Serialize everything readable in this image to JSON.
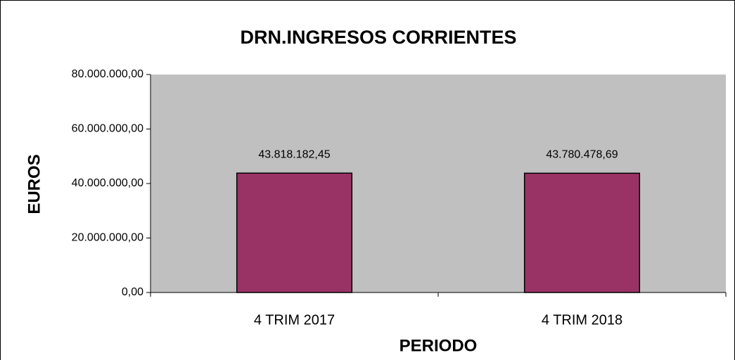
{
  "chart_data": {
    "type": "bar",
    "title": "DRN.INGRESOS CORRIENTES",
    "x_label": "PERIODO",
    "y_label": "EUROS",
    "categories": [
      "4 TRIM 2017",
      "4 TRIM 2018"
    ],
    "values": [
      43818182.45,
      43780478.69
    ],
    "value_labels": [
      "43.818.182,45",
      "43.780.478,69"
    ],
    "color": "#993366",
    "ylim": [
      0,
      80000000
    ],
    "yticks": [
      {
        "value": 0,
        "label": "0,00"
      },
      {
        "value": 20000000,
        "label": "20.000.000,00"
      },
      {
        "value": 40000000,
        "label": "40.000.000,00"
      },
      {
        "value": 60000000,
        "label": "60.000.000,00"
      },
      {
        "value": 80000000,
        "label": "80.000.000,00"
      }
    ],
    "grid": false
  }
}
